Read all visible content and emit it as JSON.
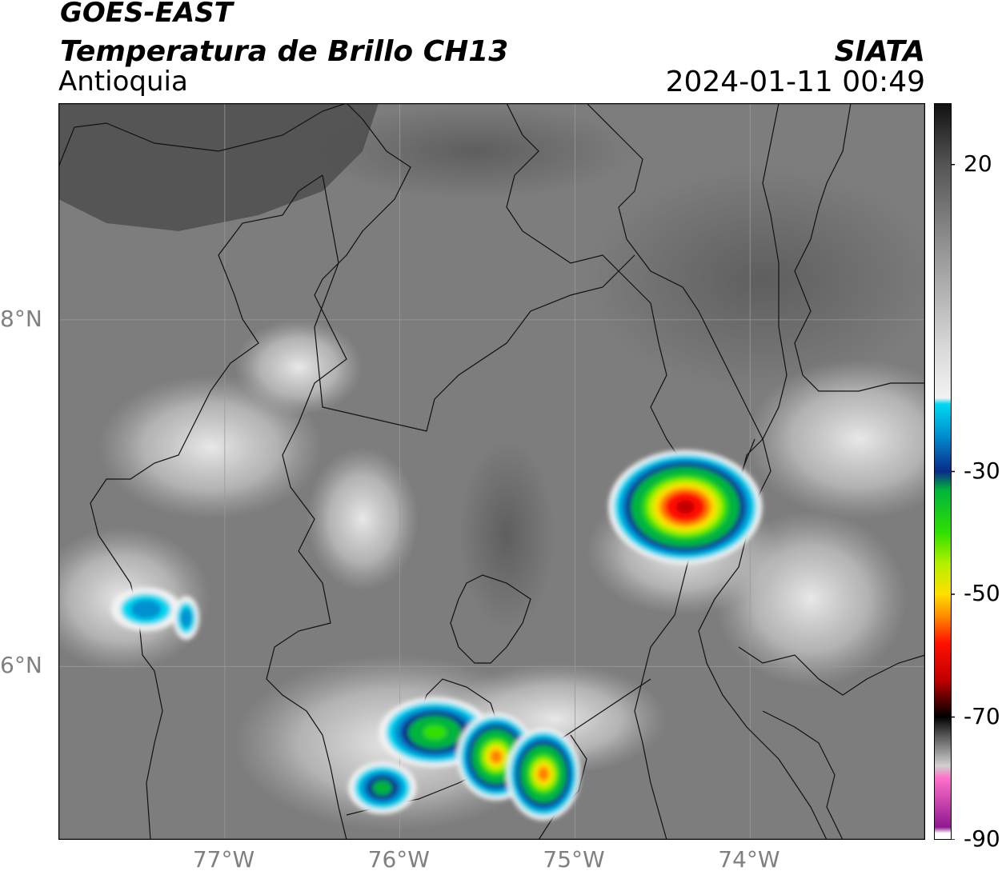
{
  "header": {
    "satellite": "GOES-EAST",
    "product": "Temperatura de Brillo CH13",
    "region": "Antioquia",
    "organization": "SIATA",
    "datetime": "2024-01-11 00:49"
  },
  "map": {
    "lon_range": [
      -77.95,
      -73.0
    ],
    "lat_range": [
      5.0,
      9.25
    ],
    "lon_ticks": [
      {
        "value": -77,
        "label": "77°W"
      },
      {
        "value": -76,
        "label": "76°W"
      },
      {
        "value": -75,
        "label": "75°W"
      },
      {
        "value": -74,
        "label": "74°W"
      }
    ],
    "lat_ticks": [
      {
        "value": 8,
        "label": "8°N"
      },
      {
        "value": 6,
        "label": "6°N"
      }
    ],
    "storm_cells": [
      {
        "lon": -74.37,
        "lat": 6.92,
        "min_temp_c": -70
      },
      {
        "lon": -75.8,
        "lat": 5.62,
        "min_temp_c": -45
      },
      {
        "lon": -75.45,
        "lat": 5.48,
        "min_temp_c": -55
      },
      {
        "lon": -75.18,
        "lat": 5.38,
        "min_temp_c": -58
      },
      {
        "lon": -76.1,
        "lat": 5.3,
        "min_temp_c": -35
      },
      {
        "lon": -77.45,
        "lat": 6.33,
        "min_temp_c": -30
      },
      {
        "lon": -77.22,
        "lat": 6.28,
        "min_temp_c": -30
      }
    ]
  },
  "colorbar": {
    "range_c": [
      -90,
      30
    ],
    "ticks": [
      {
        "value": 20,
        "label": "20"
      },
      {
        "value": -30,
        "label": "-30"
      },
      {
        "value": -50,
        "label": "-50"
      },
      {
        "value": -70,
        "label": "-70"
      },
      {
        "value": -90,
        "label": "-90"
      }
    ],
    "colors": {
      "warm_dark": "#111111",
      "neutral": "#f2f2f2",
      "cyan": "#00d8f0",
      "navy": "#0a2a8a",
      "green": "#00b43c",
      "lime": "#b4f000",
      "yellow": "#ffe000",
      "orange": "#ff8000",
      "red": "#ff1000",
      "darkred": "#600000",
      "black": "#000000",
      "pink": "#ff70c8",
      "purple": "#901890"
    }
  }
}
